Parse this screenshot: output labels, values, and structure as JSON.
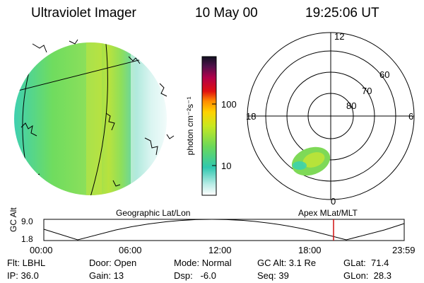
{
  "header": {
    "instrument": "Ultraviolet Imager",
    "date": "10 May 00",
    "time": "19:25:06 UT"
  },
  "colorbar": {
    "unit_label": "photon cm⁻²s⁻¹",
    "ticks": [
      "100",
      "10"
    ],
    "scale": "log"
  },
  "polar": {
    "mlt_labels": {
      "top": "12",
      "left": "18",
      "right": "6",
      "bottom": "0"
    },
    "lat_labels": [
      "60",
      "70",
      "80"
    ]
  },
  "panels": {
    "left_caption": "Geographic Lat/Lon",
    "right_caption": "Apex MLat/MLT"
  },
  "orbit": {
    "ylabel": "GC Alt",
    "y_ticks": [
      "9.0",
      "1.8"
    ],
    "x_ticks": [
      "00:00",
      "06:00",
      "12:00",
      "18:00",
      "23:59"
    ],
    "marker_color": "#d01010"
  },
  "footer": {
    "col1": [
      "Flt: LBHL",
      "IP: 36.0"
    ],
    "col2": [
      "Door: Open",
      "Gain: 13"
    ],
    "col3": [
      "Mode: Normal",
      "Dsp:   -6.0"
    ],
    "col4": [
      "GC Alt: 3.1 Re",
      "Seq: 39"
    ],
    "col5": [
      "GLat:  71.4",
      "GLon:  28.3"
    ]
  },
  "colors": {
    "aurora_green": "#7ed957",
    "aurora_bright": "#b7e33a",
    "aurora_teal": "#34d1b8"
  }
}
